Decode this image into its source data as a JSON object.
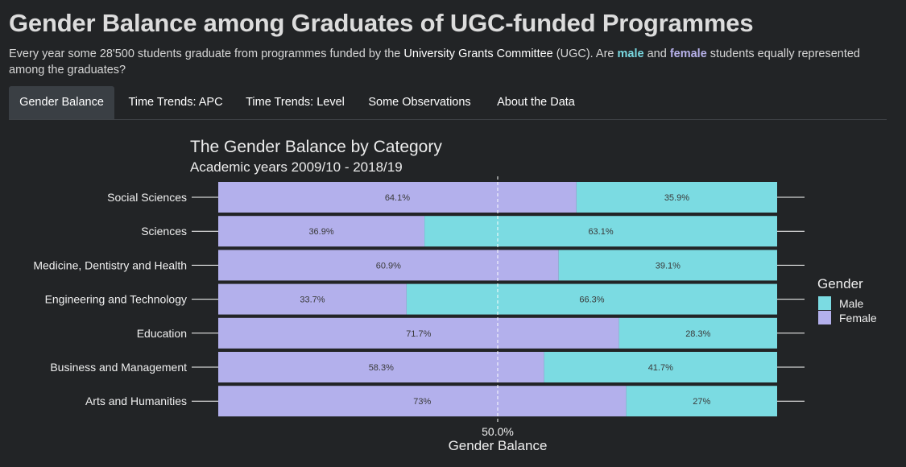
{
  "header": {
    "title": "Gender Balance among Graduates of UGC-funded Programmes",
    "sub_a": "Every year some 28'500 students graduate from programmes funded by the ",
    "sub_ugc": "University Grants Committee",
    "sub_b": " (UGC). Are ",
    "sub_male": "male",
    "sub_c": " and ",
    "sub_female": "female",
    "sub_d": " students equally represented among the graduates?"
  },
  "tabs": [
    {
      "label": "Gender Balance",
      "active": true
    },
    {
      "label": "Time Trends: APC",
      "active": false
    },
    {
      "label": "Time Trends: Level",
      "active": false
    },
    {
      "label": "Some Observations",
      "active": false
    },
    {
      "label": "About the Data",
      "active": false
    }
  ],
  "chart_data": {
    "type": "bar",
    "orientation": "horizontal",
    "stacked": true,
    "title": "The Gender Balance by Category",
    "subtitle": "Academic years 2009/10 - 2018/19",
    "xlabel": "Gender Balance",
    "x_tick_label": "50.0%",
    "reference_line": 50,
    "xlim": [
      0,
      100
    ],
    "categories": [
      "Social Sciences",
      "Sciences",
      "Medicine, Dentistry and Health",
      "Engineering and Technology",
      "Education",
      "Business and Management",
      "Arts and Humanities"
    ],
    "series": [
      {
        "name": "Female",
        "color": "#b3b0ec",
        "values": [
          64.1,
          36.9,
          60.9,
          33.7,
          71.7,
          58.3,
          73
        ],
        "labels": [
          "64.1%",
          "36.9%",
          "60.9%",
          "33.7%",
          "71.7%",
          "58.3%",
          "73%"
        ]
      },
      {
        "name": "Male",
        "color": "#7bdbe2",
        "values": [
          35.9,
          63.1,
          39.1,
          66.3,
          28.3,
          41.7,
          27
        ],
        "labels": [
          "35.9%",
          "63.1%",
          "39.1%",
          "66.3%",
          "28.3%",
          "41.7%",
          "27%"
        ]
      }
    ],
    "legend": {
      "title": "Gender",
      "position": "right",
      "items": [
        "Male",
        "Female"
      ]
    },
    "grid": false
  },
  "colors": {
    "background": "#222426",
    "male": "#7bdbe2",
    "female": "#b3b0ec",
    "accent_male_text": "#7ad9e1",
    "accent_female_text": "#b7b1ea"
  }
}
